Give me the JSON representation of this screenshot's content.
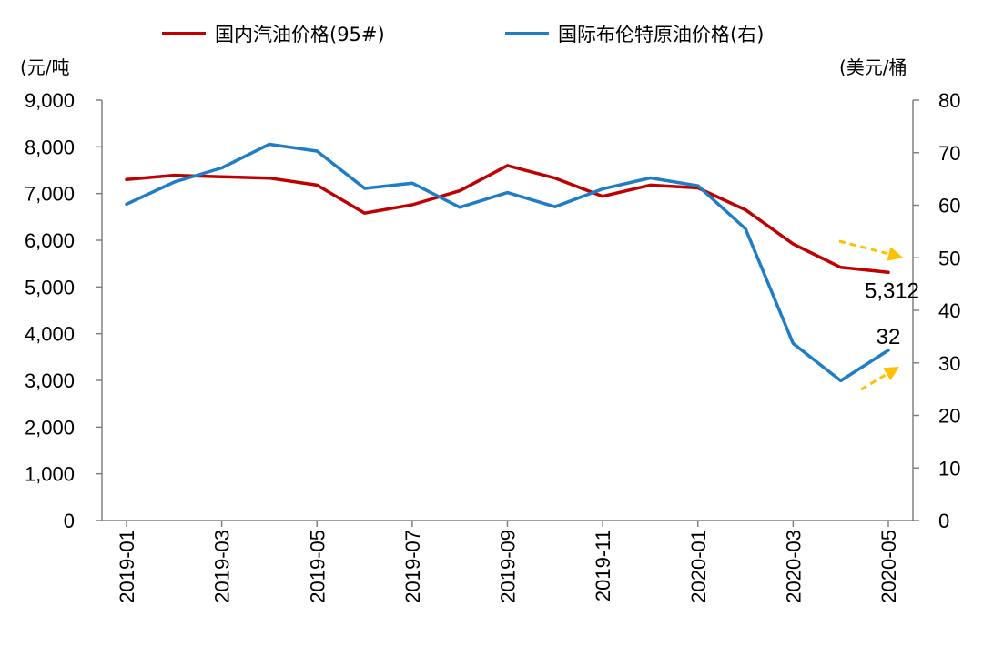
{
  "chart_data": {
    "type": "line",
    "x": [
      "2019-01",
      "2019-02",
      "2019-03",
      "2019-04",
      "2019-05",
      "2019-06",
      "2019-07",
      "2019-08",
      "2019-09",
      "2019-10",
      "2019-11",
      "2019-12",
      "2020-01",
      "2020-02",
      "2020-03",
      "2020-04",
      "2020-05"
    ],
    "x_tick_labels": [
      "2019-01",
      "2019-03",
      "2019-05",
      "2019-07",
      "2019-09",
      "2019-11",
      "2020-01",
      "2020-03",
      "2020-05"
    ],
    "series": [
      {
        "name": "国内汽油价格(95#)",
        "axis": "left",
        "color": "#C00000",
        "values": [
          7300,
          7390,
          7360,
          7330,
          7180,
          6580,
          6760,
          7060,
          7600,
          7330,
          6940,
          7180,
          7120,
          6650,
          5920,
          5420,
          5312
        ]
      },
      {
        "name": "国际布伦特原油价格(右)",
        "axis": "right",
        "color": "#1F7DC8",
        "values": [
          60.2,
          64.4,
          67.1,
          71.6,
          70.3,
          63.2,
          64.2,
          59.6,
          62.4,
          59.7,
          63.1,
          65.2,
          63.7,
          55.5,
          33.7,
          26.6,
          32.4
        ]
      }
    ],
    "y_left": {
      "unit": "(元/吨",
      "range": [
        0,
        9000
      ],
      "ticks": [
        "0",
        "1,000",
        "2,000",
        "3,000",
        "4,000",
        "5,000",
        "6,000",
        "7,000",
        "8,000",
        "9,000"
      ]
    },
    "y_right": {
      "unit": "(美元/桶",
      "range": [
        0,
        80
      ],
      "ticks": [
        "0",
        "10",
        "20",
        "30",
        "40",
        "50",
        "60",
        "70",
        "80"
      ]
    },
    "annotations": [
      {
        "text": "5,312",
        "series": 0,
        "direction": "down"
      },
      {
        "text": "32",
        "series": 1,
        "direction": "up"
      }
    ],
    "arrow_color": "#FFC000",
    "grid": false,
    "legend_position": "top"
  }
}
